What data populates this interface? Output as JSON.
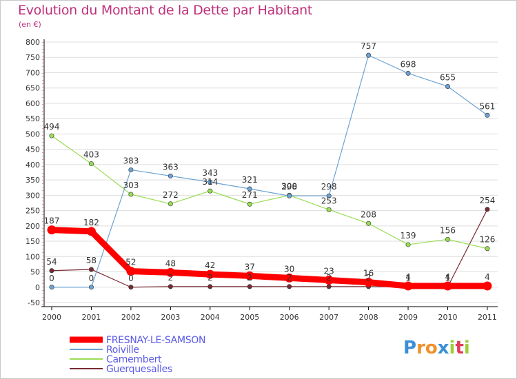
{
  "title": "Evolution du Montant de la Dette par Habitant",
  "subtitle": "(en €)",
  "logo_text": "Proxiti",
  "colors": {
    "title": "#c0307a",
    "axis": "#000000",
    "grid": "#dddddd",
    "tick_text": "#333333",
    "label_text": "#333333",
    "legend_text": "#5a5ae8"
  },
  "chart_data": {
    "type": "line",
    "title": "Evolution du Montant de la Dette par Habitant",
    "subtitle": "(en €)",
    "xlabel": "",
    "ylabel": "",
    "categories": [
      "2000",
      "2001",
      "2002",
      "2003",
      "2004",
      "2005",
      "2006",
      "2007",
      "2008",
      "2009",
      "2010",
      "2011"
    ],
    "ylim": [
      -50,
      800
    ],
    "yticks": [
      -50,
      0,
      50,
      100,
      150,
      200,
      250,
      300,
      350,
      400,
      450,
      500,
      550,
      600,
      650,
      700,
      750,
      800
    ],
    "grid": true,
    "legend_position": "bottom-left",
    "series": [
      {
        "name": "FRESNAY-LE-SAMSON",
        "color": "#ff0000",
        "values": [
          187,
          182,
          52,
          48,
          42,
          37,
          30,
          23,
          16,
          4,
          4,
          4
        ],
        "emphasis": true
      },
      {
        "name": "Roiville",
        "color": "#6ca2d4",
        "values": [
          0,
          0,
          383,
          363,
          343,
          321,
          298,
          298,
          757,
          698,
          655,
          561
        ]
      },
      {
        "name": "Camembert",
        "color": "#99dd55",
        "values": [
          494,
          403,
          303,
          272,
          314,
          271,
          300,
          253,
          208,
          139,
          156,
          126
        ]
      },
      {
        "name": "Guerquesalles",
        "color": "#772a33",
        "values": [
          54,
          58,
          0,
          2,
          2,
          2,
          2,
          2,
          2,
          1,
          1,
          254
        ]
      }
    ]
  }
}
